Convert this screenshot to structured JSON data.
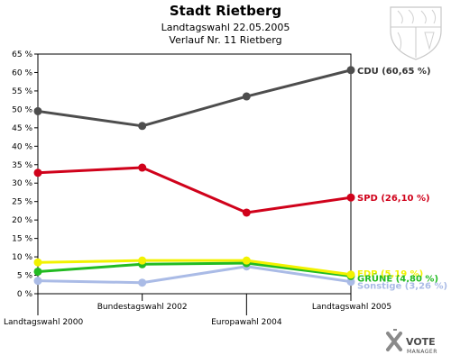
{
  "chart_data": {
    "type": "line",
    "title": "Stadt Rietberg",
    "subtitle_1": "Landtagswahl 22.05.2005",
    "subtitle_2": "Verlauf Nr. 11 Rietberg",
    "categories": [
      "Landtagswahl 2000",
      "Bundestagswahl 2002",
      "Europawahl 2004",
      "Landtagswahl 2005"
    ],
    "ylim": [
      0,
      65
    ],
    "ytick_step": 5,
    "grid": false,
    "series": [
      {
        "name": "CDU",
        "label": "CDU (60,65 %)",
        "color": "#4d4d4d",
        "values": [
          49.5,
          45.5,
          53.5,
          60.65
        ]
      },
      {
        "name": "SPD",
        "label": "SPD (26,10 %)",
        "color": "#d0021b",
        "values": [
          32.8,
          34.2,
          22.0,
          26.1
        ]
      },
      {
        "name": "FDP",
        "label": "FDP (5,19 %)",
        "color": "#f2f200",
        "values": [
          8.5,
          9.0,
          9.0,
          5.19
        ]
      },
      {
        "name": "GRÜNE",
        "label": "GRÜNE (4,80 %)",
        "color": "#22bb22",
        "values": [
          6.0,
          8.0,
          8.3,
          4.8
        ]
      },
      {
        "name": "Sonstige",
        "label": "Sonstige (3,26 %)",
        "color": "#aabbe6",
        "values": [
          3.5,
          3.0,
          7.4,
          3.26
        ]
      }
    ]
  },
  "branding": {
    "logo_main": "VOTE",
    "logo_sub": "MANAGER"
  }
}
